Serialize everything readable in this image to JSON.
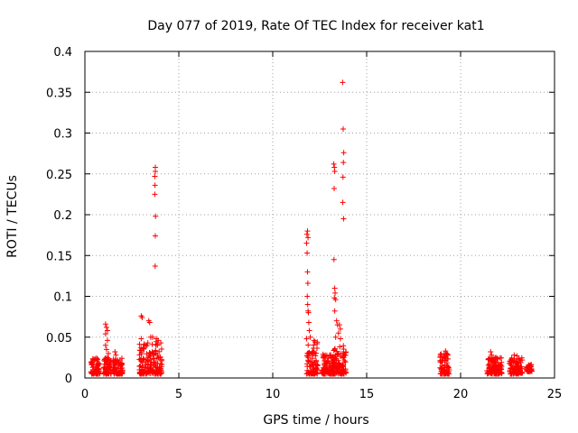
{
  "chart_data": {
    "type": "scatter",
    "title": "Day 077 of 2019, Rate Of TEC Index for receiver kat1",
    "xlabel": "GPS time / hours",
    "ylabel": "ROTI / TECUs",
    "xlim": [
      0,
      25
    ],
    "ylim": [
      0,
      0.4
    ],
    "grid": true,
    "marker": "+",
    "marker_color": "#ff0000",
    "x_ticks": [
      0,
      5,
      10,
      15,
      20,
      25
    ],
    "x_tick_labels": [
      "0",
      "5",
      "10",
      "15",
      "20",
      "25"
    ],
    "y_ticks": [
      0,
      0.05,
      0.1,
      0.15,
      0.2,
      0.25,
      0.3,
      0.35,
      0.4
    ],
    "y_tick_labels": [
      "0",
      "0.05",
      "0.1",
      "0.15",
      "0.2",
      "0.25",
      "0.3",
      "0.35",
      "0.4"
    ],
    "clusters": [
      {
        "x_range": [
          0.3,
          0.8
        ],
        "y_range": [
          0.005,
          0.025
        ]
      },
      {
        "x_range": [
          1.0,
          1.4
        ],
        "y_range": [
          0.005,
          0.025
        ]
      },
      {
        "x_range": [
          1.5,
          2.0
        ],
        "y_range": [
          0.005,
          0.025
        ]
      },
      {
        "x_range": [
          2.9,
          4.1
        ],
        "y_range": [
          0.005,
          0.045
        ]
      },
      {
        "x_range": [
          11.8,
          12.4
        ],
        "y_range": [
          0.005,
          0.045
        ]
      },
      {
        "x_range": [
          12.6,
          13.3
        ],
        "y_range": [
          0.005,
          0.03
        ]
      },
      {
        "x_range": [
          13.2,
          13.9
        ],
        "y_range": [
          0.005,
          0.04
        ]
      },
      {
        "x_range": [
          18.9,
          19.4
        ],
        "y_range": [
          0.005,
          0.03
        ]
      },
      {
        "x_range": [
          21.4,
          22.2
        ],
        "y_range": [
          0.005,
          0.025
        ]
      },
      {
        "x_range": [
          22.6,
          23.3
        ],
        "y_range": [
          0.005,
          0.025
        ]
      },
      {
        "x_range": [
          23.5,
          23.8
        ],
        "y_range": [
          0.008,
          0.018
        ]
      }
    ],
    "points": [
      {
        "x": 1.1,
        "y": 0.066
      },
      {
        "x": 1.15,
        "y": 0.062
      },
      {
        "x": 1.2,
        "y": 0.058
      },
      {
        "x": 1.1,
        "y": 0.054
      },
      {
        "x": 1.2,
        "y": 0.046
      },
      {
        "x": 1.15,
        "y": 0.035
      },
      {
        "x": 1.25,
        "y": 0.03
      },
      {
        "x": 1.1,
        "y": 0.04
      },
      {
        "x": 1.6,
        "y": 0.032
      },
      {
        "x": 1.65,
        "y": 0.028
      },
      {
        "x": 3.0,
        "y": 0.076
      },
      {
        "x": 3.05,
        "y": 0.074
      },
      {
        "x": 3.4,
        "y": 0.07
      },
      {
        "x": 3.45,
        "y": 0.068
      },
      {
        "x": 3.0,
        "y": 0.048
      },
      {
        "x": 3.5,
        "y": 0.05
      },
      {
        "x": 3.6,
        "y": 0.05
      },
      {
        "x": 3.8,
        "y": 0.048
      },
      {
        "x": 3.9,
        "y": 0.046
      },
      {
        "x": 3.75,
        "y": 0.258
      },
      {
        "x": 3.75,
        "y": 0.253
      },
      {
        "x": 3.72,
        "y": 0.247
      },
      {
        "x": 3.73,
        "y": 0.236
      },
      {
        "x": 3.72,
        "y": 0.225
      },
      {
        "x": 3.76,
        "y": 0.198
      },
      {
        "x": 3.75,
        "y": 0.174
      },
      {
        "x": 3.74,
        "y": 0.137
      },
      {
        "x": 11.85,
        "y": 0.18
      },
      {
        "x": 11.82,
        "y": 0.176
      },
      {
        "x": 11.88,
        "y": 0.172
      },
      {
        "x": 11.8,
        "y": 0.165
      },
      {
        "x": 11.83,
        "y": 0.153
      },
      {
        "x": 11.85,
        "y": 0.13
      },
      {
        "x": 11.87,
        "y": 0.116
      },
      {
        "x": 11.84,
        "y": 0.1
      },
      {
        "x": 11.86,
        "y": 0.09
      },
      {
        "x": 11.88,
        "y": 0.082
      },
      {
        "x": 11.9,
        "y": 0.08
      },
      {
        "x": 11.92,
        "y": 0.068
      },
      {
        "x": 11.95,
        "y": 0.058
      },
      {
        "x": 12.0,
        "y": 0.05
      },
      {
        "x": 11.8,
        "y": 0.048
      },
      {
        "x": 12.2,
        "y": 0.046
      },
      {
        "x": 13.25,
        "y": 0.262
      },
      {
        "x": 13.28,
        "y": 0.258
      },
      {
        "x": 13.3,
        "y": 0.253
      },
      {
        "x": 13.27,
        "y": 0.232
      },
      {
        "x": 13.26,
        "y": 0.145
      },
      {
        "x": 13.3,
        "y": 0.11
      },
      {
        "x": 13.32,
        "y": 0.104
      },
      {
        "x": 13.28,
        "y": 0.098
      },
      {
        "x": 13.35,
        "y": 0.096
      },
      {
        "x": 13.3,
        "y": 0.082
      },
      {
        "x": 13.4,
        "y": 0.07
      },
      {
        "x": 13.45,
        "y": 0.065
      },
      {
        "x": 13.55,
        "y": 0.065
      },
      {
        "x": 13.6,
        "y": 0.06
      },
      {
        "x": 13.5,
        "y": 0.055
      },
      {
        "x": 13.35,
        "y": 0.05
      },
      {
        "x": 13.6,
        "y": 0.048
      },
      {
        "x": 13.72,
        "y": 0.362
      },
      {
        "x": 13.75,
        "y": 0.305
      },
      {
        "x": 13.78,
        "y": 0.276
      },
      {
        "x": 13.76,
        "y": 0.264
      },
      {
        "x": 13.74,
        "y": 0.246
      },
      {
        "x": 13.73,
        "y": 0.215
      },
      {
        "x": 13.77,
        "y": 0.195
      },
      {
        "x": 19.2,
        "y": 0.033
      },
      {
        "x": 19.25,
        "y": 0.03
      },
      {
        "x": 21.6,
        "y": 0.032
      },
      {
        "x": 21.65,
        "y": 0.028
      },
      {
        "x": 22.85,
        "y": 0.028
      },
      {
        "x": 23.0,
        "y": 0.027
      }
    ]
  }
}
